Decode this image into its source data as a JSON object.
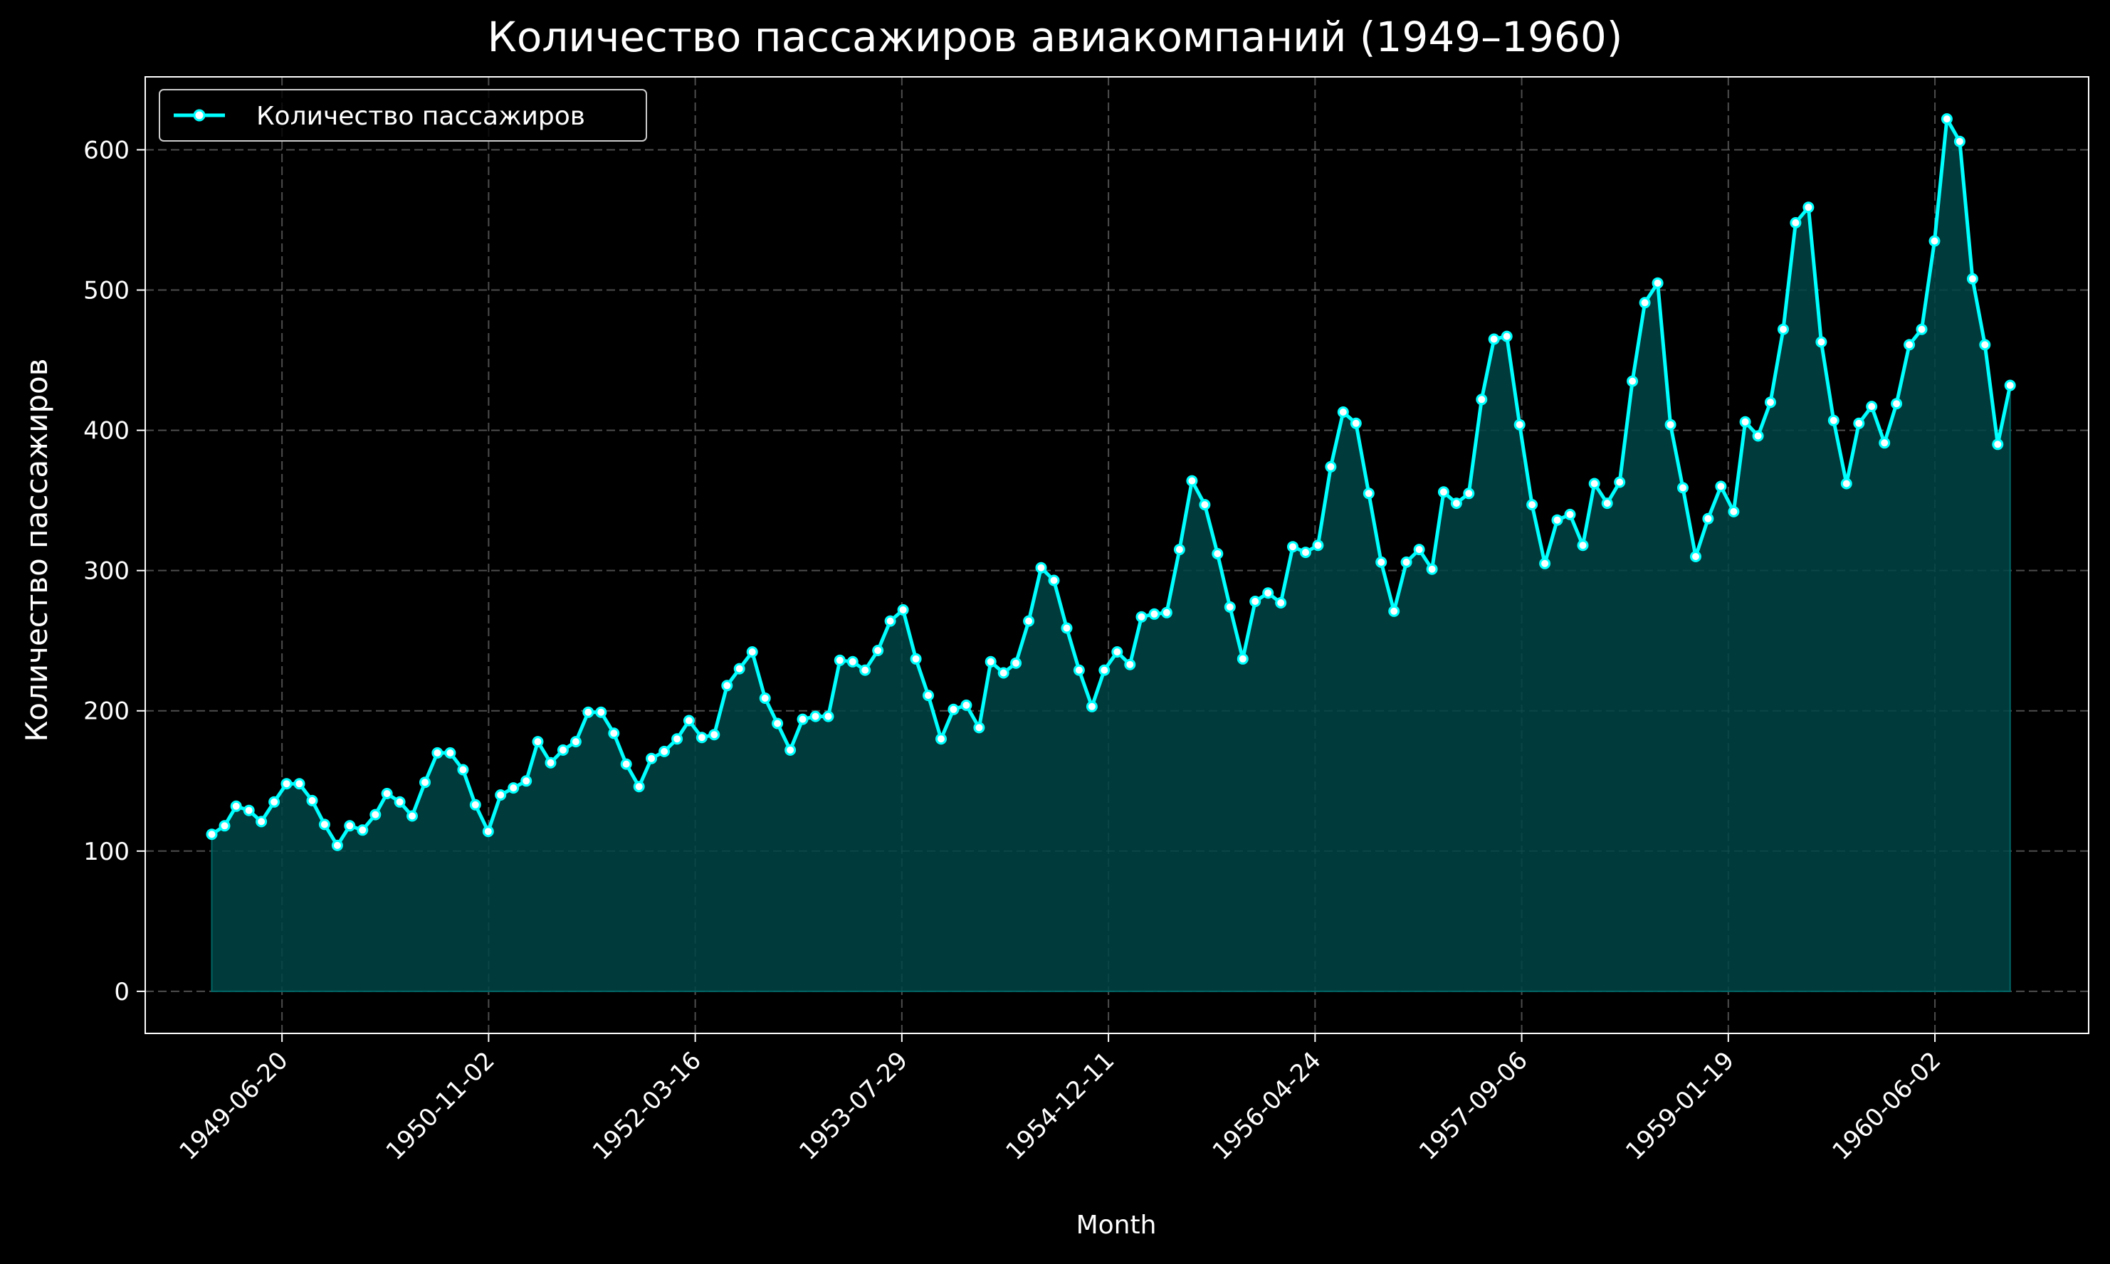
{
  "chart_data": {
    "type": "line",
    "title": "Количество пассажиров авиакомпаний (1949–1960)",
    "xlabel": "Month",
    "ylabel": "Количество пассажиров",
    "x_start": "1949-01-01",
    "x_step": "month",
    "xlim": [
      "1948-07-24",
      "1961-06-09"
    ],
    "ylim": [
      -30,
      652
    ],
    "x_ticks": [
      "1949-06-20",
      "1950-11-02",
      "1952-03-16",
      "1953-07-29",
      "1954-12-11",
      "1956-04-24",
      "1957-09-06",
      "1959-01-19",
      "1960-06-02"
    ],
    "y_ticks": [
      0,
      100,
      200,
      300,
      400,
      500,
      600
    ],
    "grid": true,
    "legend": "top-left",
    "fill_under": true,
    "series": [
      {
        "name": "Количество пассажиров",
        "color": "#00ffff",
        "fill_color": "#004444",
        "marker_fill": "#ffffff",
        "values": [
          112,
          118,
          132,
          129,
          121,
          135,
          148,
          148,
          136,
          119,
          104,
          118,
          115,
          126,
          141,
          135,
          125,
          149,
          170,
          170,
          158,
          133,
          114,
          140,
          145,
          150,
          178,
          163,
          172,
          178,
          199,
          199,
          184,
          162,
          146,
          166,
          171,
          180,
          193,
          181,
          183,
          218,
          230,
          242,
          209,
          191,
          172,
          194,
          196,
          196,
          236,
          235,
          229,
          243,
          264,
          272,
          237,
          211,
          180,
          201,
          204,
          188,
          235,
          227,
          234,
          264,
          302,
          293,
          259,
          229,
          203,
          229,
          242,
          233,
          267,
          269,
          270,
          315,
          364,
          347,
          312,
          274,
          237,
          278,
          284,
          277,
          317,
          313,
          318,
          374,
          413,
          405,
          355,
          306,
          271,
          306,
          315,
          301,
          356,
          348,
          355,
          422,
          465,
          467,
          404,
          347,
          305,
          336,
          340,
          318,
          362,
          348,
          363,
          435,
          491,
          505,
          404,
          359,
          310,
          337,
          360,
          342,
          406,
          396,
          420,
          472,
          548,
          559,
          463,
          407,
          362,
          405,
          417,
          391,
          419,
          461,
          472,
          535,
          622,
          606,
          508,
          461,
          390,
          432
        ]
      }
    ]
  }
}
